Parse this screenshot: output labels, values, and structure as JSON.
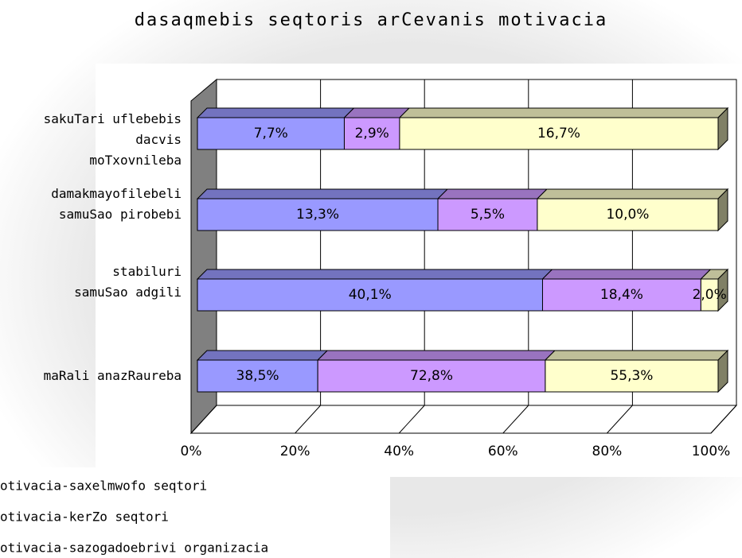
{
  "chart_data": {
    "type": "bar",
    "orientation": "horizontal",
    "stacking": "percent",
    "title": "dasaqmebis seqtoris arCevanis motivacia",
    "categories": [
      "sakuTari uflebebis dacvis moTxovnileba",
      "damakmayofilebeli samuSao pirobebi",
      "stabiluri samuSao adgili",
      "maRali anazRaureba"
    ],
    "series": [
      {
        "name": "otivacia-saxelmwofo seqtori",
        "color": "#9999ff",
        "values": [
          7.7,
          13.3,
          40.1,
          38.5
        ],
        "value_labels": [
          "7,7%",
          "13,3%",
          "40,1%",
          "38,5%"
        ]
      },
      {
        "name": "otivacia-kerZo seqtori",
        "color": "#cc99ff",
        "values": [
          2.9,
          5.5,
          18.4,
          72.8
        ],
        "value_labels": [
          "2,9%",
          "5,5%",
          "18,4%",
          "72,8%"
        ]
      },
      {
        "name": "otivacia-sazogadoebrivi organizacia",
        "color": "#ffffcc",
        "values": [
          16.7,
          10.0,
          2.0,
          55.3
        ],
        "value_labels": [
          "16,7%",
          "10,0%",
          "2,0%",
          "55,3%"
        ]
      }
    ],
    "xlim": [
      0,
      100
    ],
    "xticks": [
      {
        "value": 0,
        "label": "0%"
      },
      {
        "value": 20,
        "label": "20%"
      },
      {
        "value": 40,
        "label": "40%"
      },
      {
        "value": 60,
        "label": "60%"
      },
      {
        "value": 80,
        "label": "80%"
      },
      {
        "value": 100,
        "label": "100%"
      }
    ],
    "grid": true
  }
}
